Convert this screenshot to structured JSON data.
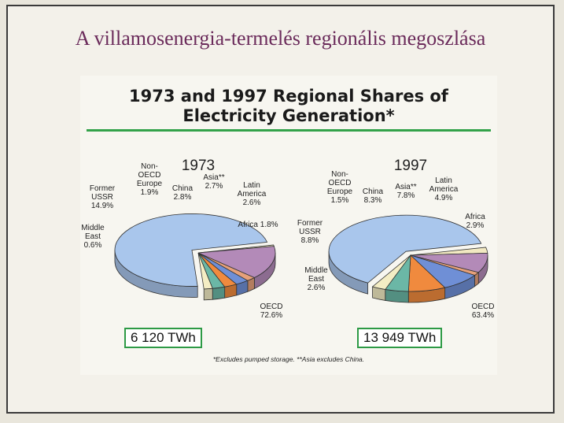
{
  "slide_title": "A villamosenergia-termelés regionális megoszlása",
  "figure": {
    "title_line1": "1973 and 1997 Regional Shares of",
    "title_line2": "Electricity Generation*",
    "footnote": "*Excludes pumped storage.      **Asia excludes China."
  },
  "colors": {
    "OECD": "#a9c6ec",
    "Middle East": "#f2e9c2",
    "Former USSR": "#b38ab8",
    "Non-OECD Europe": "#e6a07a",
    "China": "#6f8fd6",
    "Asia**": "#f08a3e",
    "Latin America": "#6bb7a6",
    "Africa": "#f4edc4"
  },
  "chart_data": [
    {
      "type": "pie",
      "title": "1973",
      "total_label": "6 120 TWh",
      "slices": [
        {
          "name": "OECD",
          "label_lines": [
            "OECD",
            "72.6%"
          ],
          "value": 72.6
        },
        {
          "name": "Middle East",
          "label_lines": [
            "Middle",
            "East",
            "0.6%"
          ],
          "value": 0.6
        },
        {
          "name": "Former USSR",
          "label_lines": [
            "Former",
            "USSR",
            "14.9%"
          ],
          "value": 14.9
        },
        {
          "name": "Non-OECD Europe",
          "label_lines": [
            "Non-",
            "OECD",
            "Europe",
            "1.9%"
          ],
          "value": 1.9
        },
        {
          "name": "China",
          "label_lines": [
            "China",
            "2.8%"
          ],
          "value": 2.8
        },
        {
          "name": "Asia**",
          "label_lines": [
            "Asia**",
            "2.7%"
          ],
          "value": 2.7
        },
        {
          "name": "Latin America",
          "label_lines": [
            "Latin",
            "America",
            "2.6%"
          ],
          "value": 2.6
        },
        {
          "name": "Africa",
          "label_lines": [
            "Africa 1.8%"
          ],
          "value": 1.8
        }
      ],
      "exploded": "OECD"
    },
    {
      "type": "pie",
      "title": "1997",
      "total_label": "13 949 TWh",
      "slices": [
        {
          "name": "OECD",
          "label_lines": [
            "OECD",
            "63.4%"
          ],
          "value": 63.4
        },
        {
          "name": "Middle East",
          "label_lines": [
            "Middle",
            "East",
            "2.6%"
          ],
          "value": 2.6
        },
        {
          "name": "Former USSR",
          "label_lines": [
            "Former",
            "USSR",
            "8.8%"
          ],
          "value": 8.8
        },
        {
          "name": "Non-OECD Europe",
          "label_lines": [
            "Non-",
            "OECD",
            "Europe",
            "1.5%"
          ],
          "value": 1.5
        },
        {
          "name": "China",
          "label_lines": [
            "China",
            "8.3%"
          ],
          "value": 8.3
        },
        {
          "name": "Asia**",
          "label_lines": [
            "Asia**",
            "7.8%"
          ],
          "value": 7.8
        },
        {
          "name": "Latin America",
          "label_lines": [
            "Latin",
            "America",
            "4.9%"
          ],
          "value": 4.9
        },
        {
          "name": "Africa",
          "label_lines": [
            "Africa",
            "2.9%"
          ],
          "value": 2.9
        }
      ],
      "exploded": "OECD"
    }
  ]
}
